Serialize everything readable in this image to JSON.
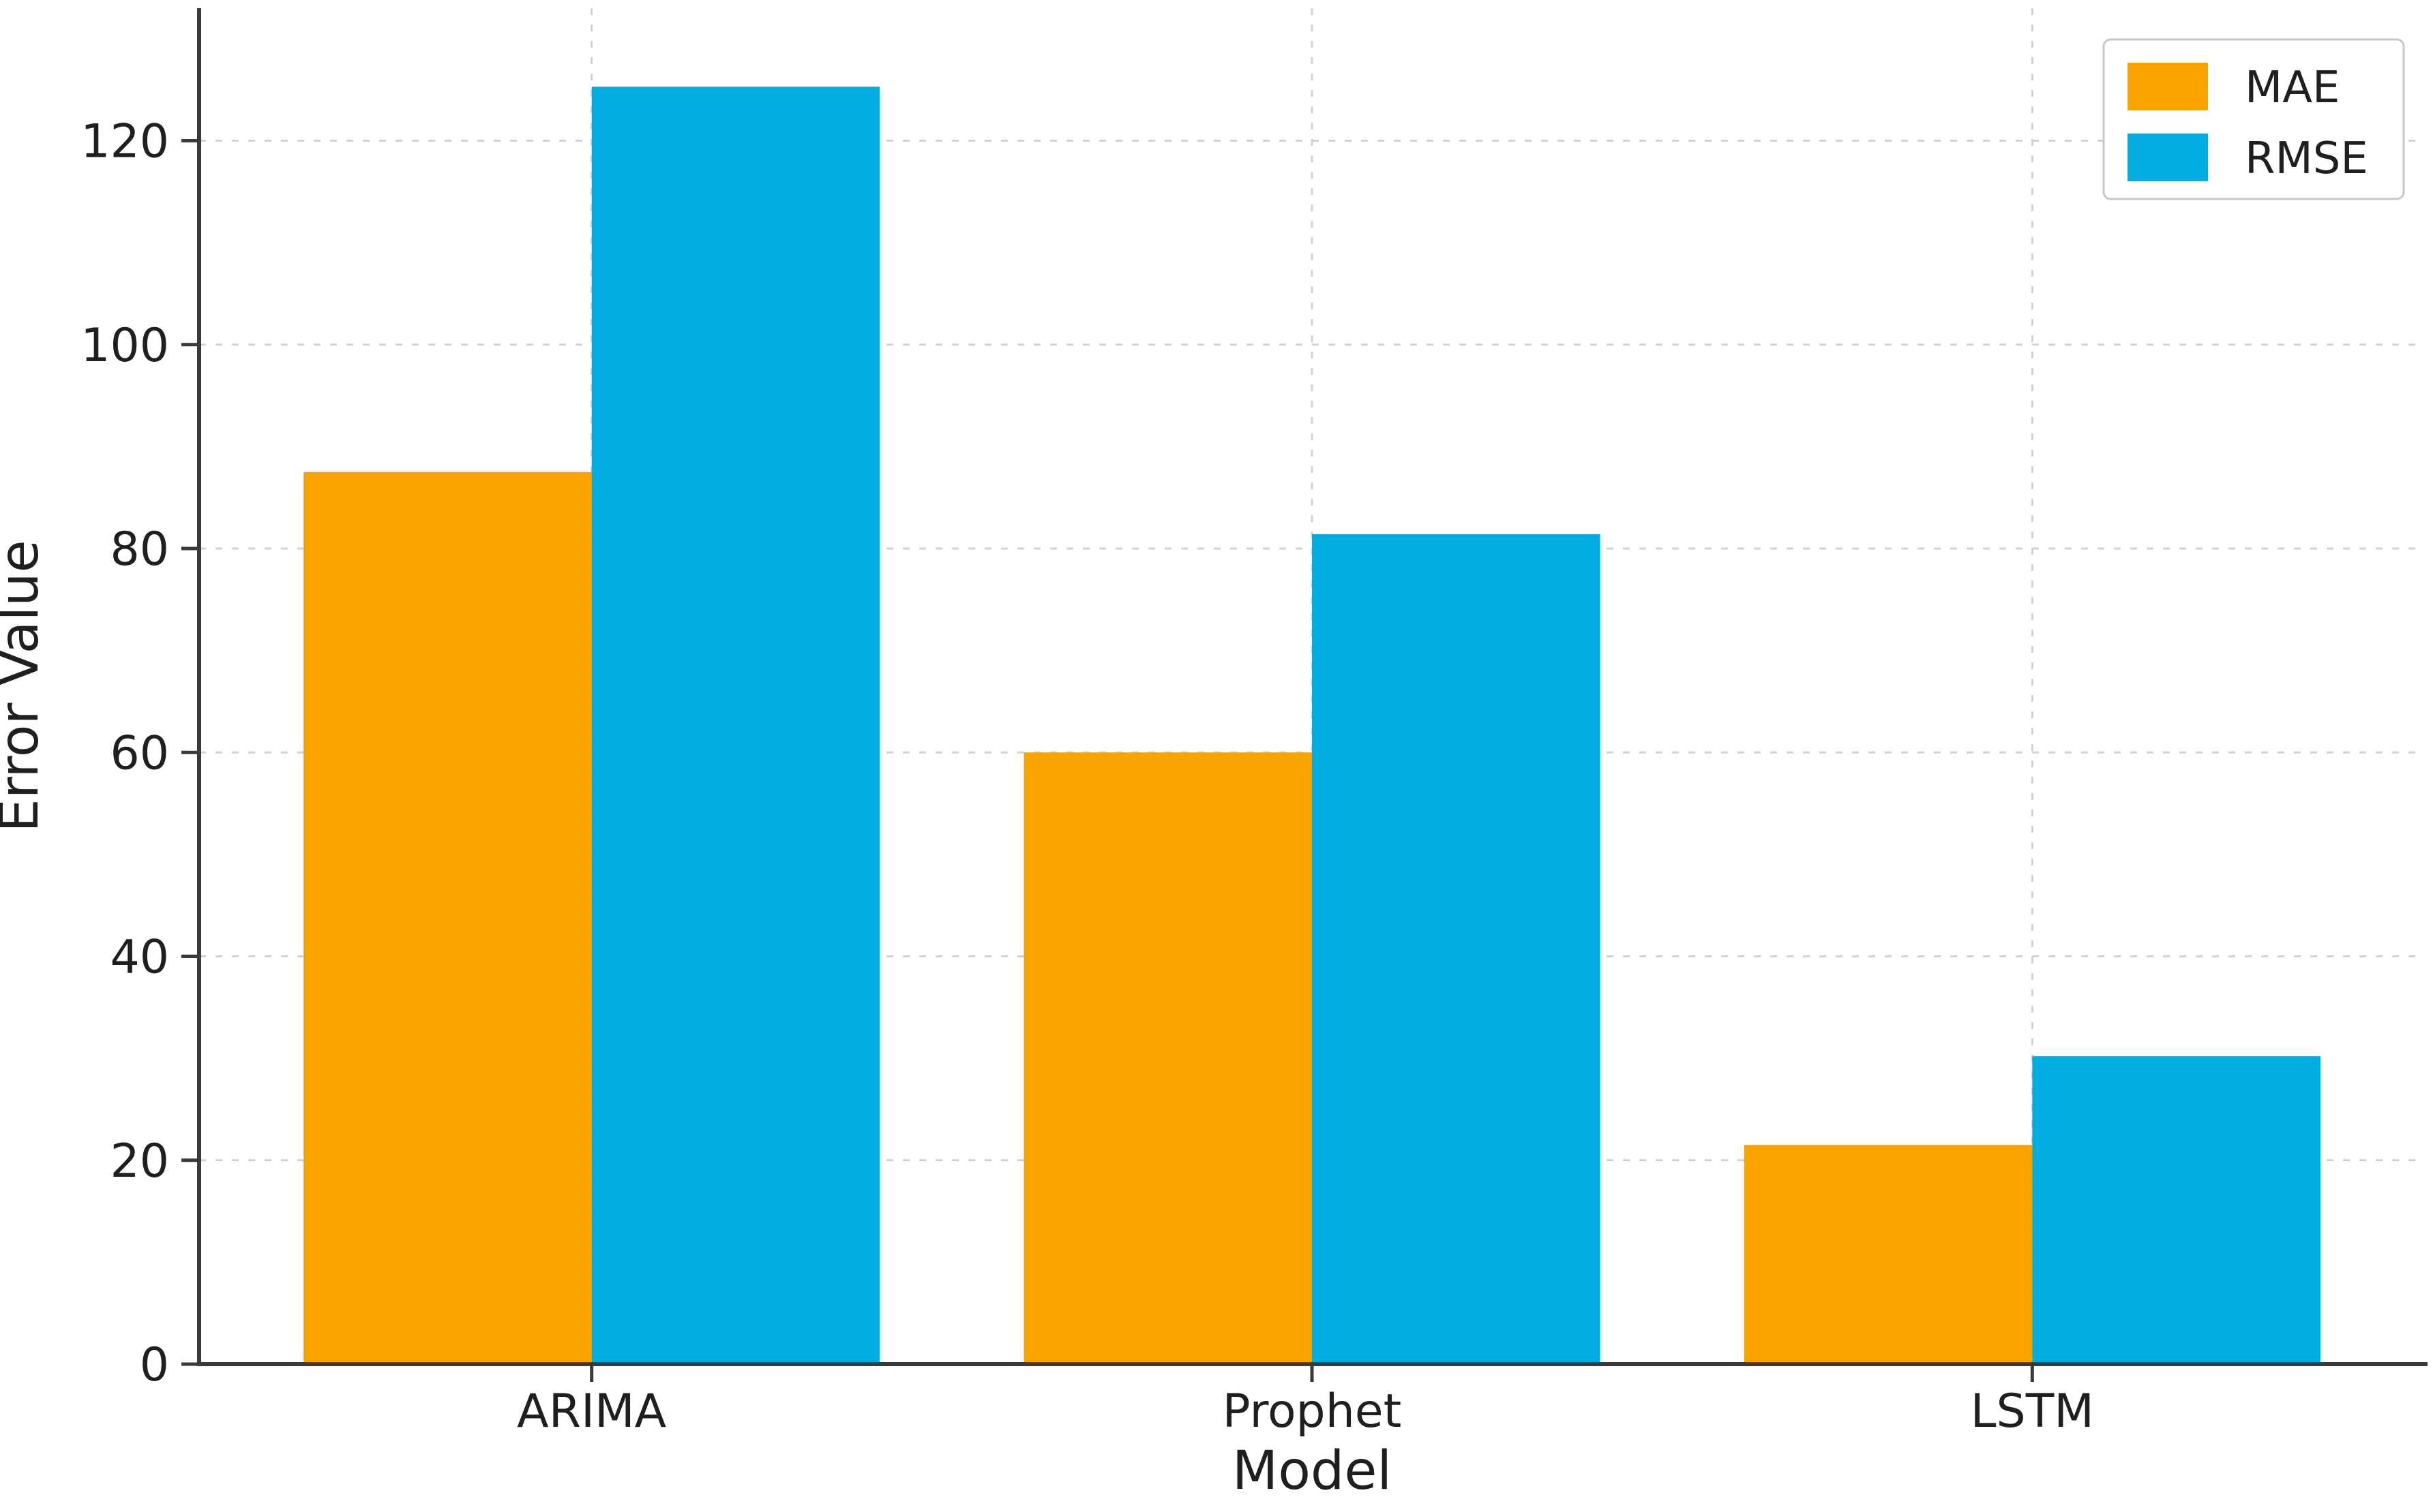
{
  "chart_data": {
    "type": "bar",
    "title": "",
    "categories": [
      "ARIMA",
      "Prophet",
      "LSTM"
    ],
    "series": [
      {
        "name": "MAE",
        "color": "#F9A300",
        "values": [
          87.5,
          60.0,
          21.5
        ]
      },
      {
        "name": "RMSE",
        "color": "#00ACE0",
        "values": [
          125.3,
          81.4,
          30.2
        ]
      }
    ],
    "xlabel": "Model",
    "ylabel": "Error Value",
    "ylim": [
      0,
      133
    ],
    "yticks": [
      0,
      20,
      40,
      60,
      80,
      100,
      120
    ],
    "grid": true,
    "grid_style": "dashed",
    "legend_position": "upper right",
    "bar_width_ratio": 0.4
  },
  "style": {
    "grid_color": "#d2d2d2",
    "spine_color": "#3a3a3a",
    "text_color": "#1f1f1f",
    "legend_border_color": "#c8c8c8",
    "background_color": "#ffffff"
  }
}
